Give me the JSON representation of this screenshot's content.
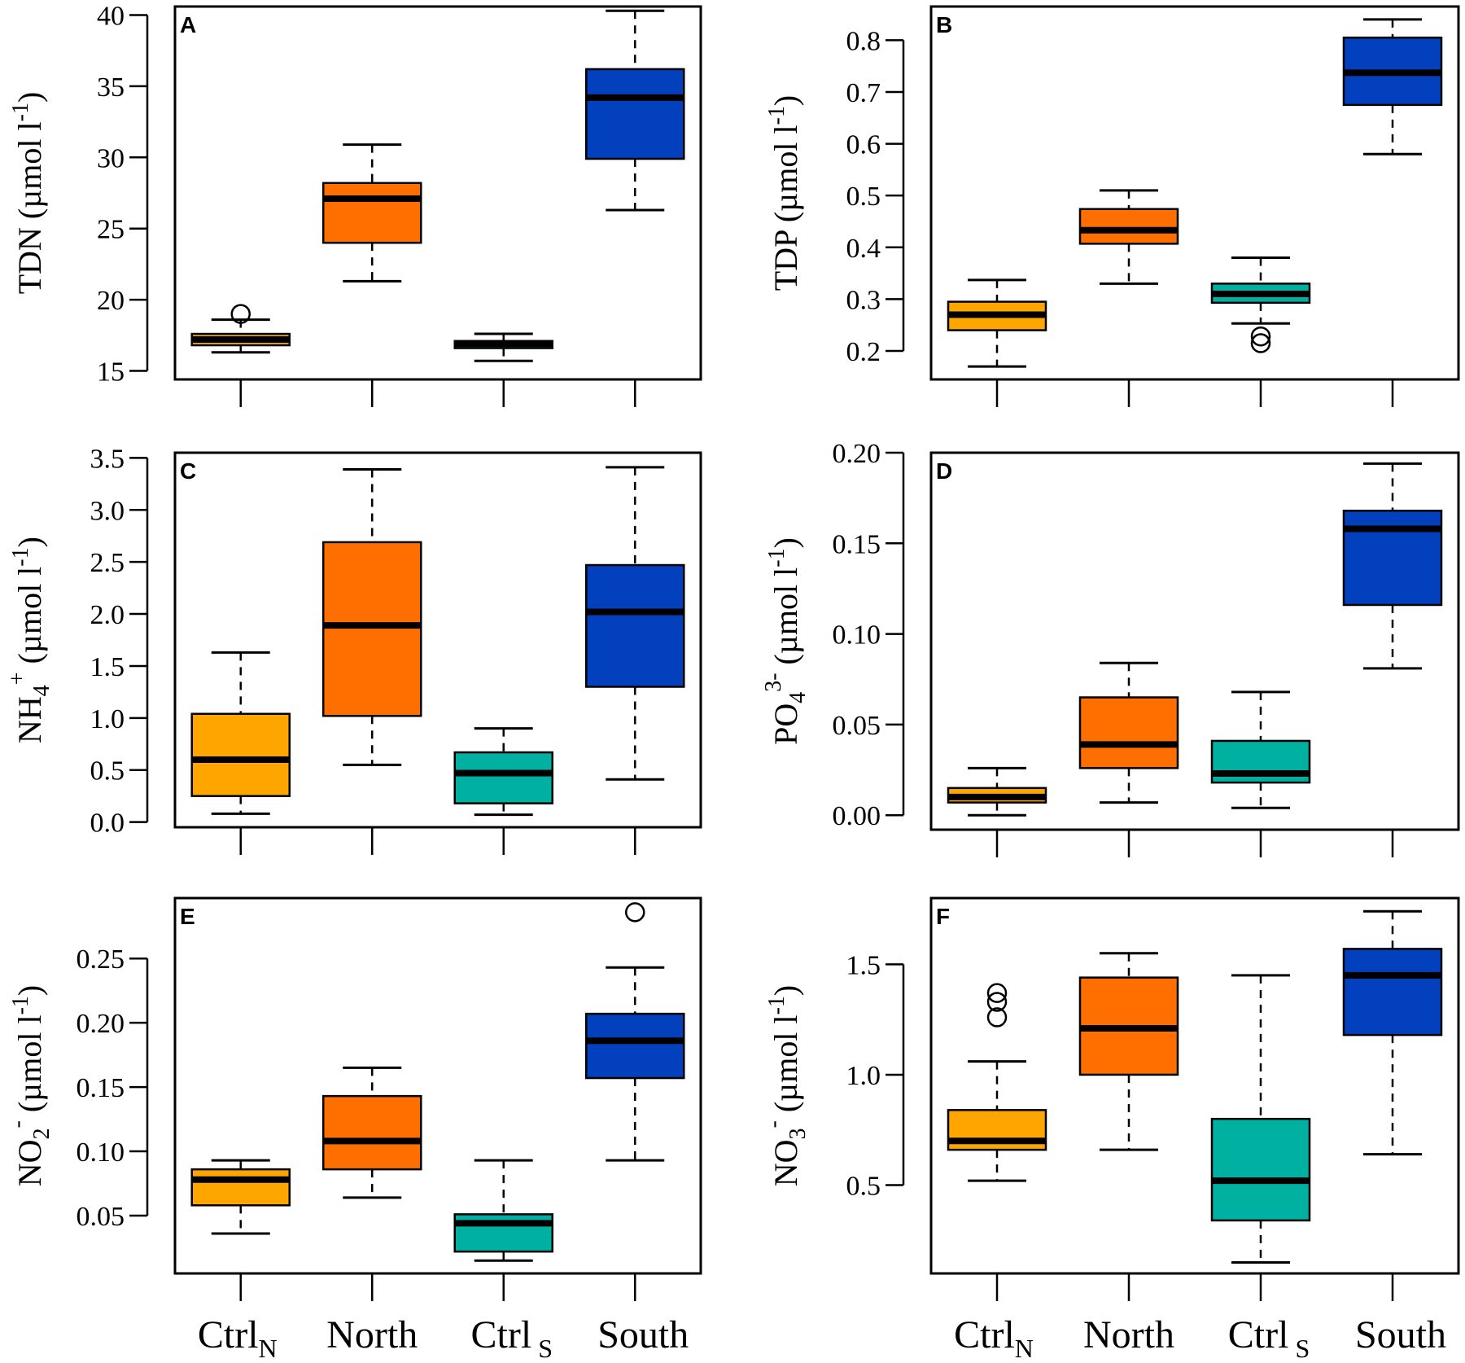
{
  "figure": {
    "categories": [
      "Ctrl_N",
      "North",
      "Ctrl_S",
      "South"
    ]
  },
  "chart_data": [
    {
      "type": "box",
      "panel": "A",
      "ylabel_main": "TDN (µmol l",
      "ylabel_sup": "-1",
      "ylabel_end": ")",
      "ylim": [
        14.4,
        40.6
      ],
      "yticks": [
        15,
        20,
        25,
        30,
        35,
        40
      ],
      "ytick_labels": [
        "15",
        "20",
        "25",
        "30",
        "35",
        "40"
      ],
      "categories": [
        "Ctrl_N",
        "North",
        "Ctrl_S",
        "South"
      ],
      "colors": [
        "#ffa500",
        "#ff6f00",
        "#00b0a0",
        "#0340bd"
      ],
      "boxes": [
        {
          "low": 16.3,
          "q1": 16.8,
          "median": 17.2,
          "q3": 17.6,
          "high": 18.6,
          "outliers": [
            19.0
          ]
        },
        {
          "low": 21.3,
          "q1": 24.0,
          "median": 27.1,
          "q3": 28.2,
          "high": 30.9,
          "outliers": []
        },
        {
          "low": 15.7,
          "q1": 16.6,
          "median": 16.9,
          "q3": 17.1,
          "high": 17.6,
          "outliers": []
        },
        {
          "low": 26.3,
          "q1": 29.9,
          "median": 34.2,
          "q3": 36.2,
          "high": 40.3,
          "outliers": []
        }
      ]
    },
    {
      "type": "box",
      "panel": "B",
      "ylabel_main": "TDP (µmol l",
      "ylabel_sup": "-1",
      "ylabel_end": ")",
      "ylim": [
        0.145,
        0.865
      ],
      "yticks": [
        0.2,
        0.3,
        0.4,
        0.5,
        0.6,
        0.7,
        0.8
      ],
      "ytick_labels": [
        "0.2",
        "0.3",
        "0.4",
        "0.5",
        "0.6",
        "0.7",
        "0.8"
      ],
      "categories": [
        "Ctrl_N",
        "North",
        "Ctrl_S",
        "South"
      ],
      "colors": [
        "#ffa500",
        "#ff6f00",
        "#00b0a0",
        "#0340bd"
      ],
      "boxes": [
        {
          "low": 0.17,
          "q1": 0.24,
          "median": 0.27,
          "q3": 0.295,
          "high": 0.337,
          "outliers": []
        },
        {
          "low": 0.33,
          "q1": 0.407,
          "median": 0.433,
          "q3": 0.474,
          "high": 0.51,
          "outliers": []
        },
        {
          "low": 0.253,
          "q1": 0.293,
          "median": 0.31,
          "q3": 0.33,
          "high": 0.38,
          "outliers": [
            0.215,
            0.228
          ]
        },
        {
          "low": 0.58,
          "q1": 0.675,
          "median": 0.737,
          "q3": 0.805,
          "high": 0.84,
          "outliers": []
        }
      ]
    },
    {
      "type": "box",
      "panel": "C",
      "ylabel_main": "NH",
      "ylabel_sub": "4",
      "ylabel_sup": "+",
      "ylabel_main2": " (µmol l",
      "ylabel_sup2": "-1",
      "ylabel_end": ")",
      "ylim": [
        -0.05,
        3.55
      ],
      "yticks": [
        0.0,
        0.5,
        1.0,
        1.5,
        2.0,
        2.5,
        3.0,
        3.5
      ],
      "ytick_labels": [
        "0.0",
        "0.5",
        "1.0",
        "1.5",
        "2.0",
        "2.5",
        "3.0",
        "3.5"
      ],
      "categories": [
        "Ctrl_N",
        "North",
        "Ctrl_S",
        "South"
      ],
      "colors": [
        "#ffa500",
        "#ff6f00",
        "#00b0a0",
        "#0340bd"
      ],
      "boxes": [
        {
          "low": 0.08,
          "q1": 0.25,
          "median": 0.6,
          "q3": 1.04,
          "high": 1.63,
          "outliers": []
        },
        {
          "low": 0.55,
          "q1": 1.02,
          "median": 1.89,
          "q3": 2.69,
          "high": 3.39,
          "outliers": []
        },
        {
          "low": 0.07,
          "q1": 0.18,
          "median": 0.47,
          "q3": 0.67,
          "high": 0.9,
          "outliers": []
        },
        {
          "low": 0.41,
          "q1": 1.3,
          "median": 2.02,
          "q3": 2.47,
          "high": 3.41,
          "outliers": []
        }
      ]
    },
    {
      "type": "box",
      "panel": "D",
      "ylabel_main": "PO",
      "ylabel_sub": "4",
      "ylabel_sup": "3-",
      "ylabel_main2": " (µmol l",
      "ylabel_sup2": "-1",
      "ylabel_end": ")",
      "ylim": [
        -0.008,
        0.2
      ],
      "yticks": [
        0.0,
        0.05,
        0.1,
        0.15,
        0.2
      ],
      "ytick_labels": [
        "0.00",
        "0.05",
        "0.10",
        "0.15",
        "0.20"
      ],
      "categories": [
        "Ctrl_N",
        "North",
        "Ctrl_S",
        "South"
      ],
      "colors": [
        "#ffa500",
        "#ff6f00",
        "#00b0a0",
        "#0340bd"
      ],
      "boxes": [
        {
          "low": 0.0,
          "q1": 0.007,
          "median": 0.01,
          "q3": 0.015,
          "high": 0.026,
          "outliers": []
        },
        {
          "low": 0.007,
          "q1": 0.026,
          "median": 0.039,
          "q3": 0.065,
          "high": 0.084,
          "outliers": []
        },
        {
          "low": 0.004,
          "q1": 0.018,
          "median": 0.023,
          "q3": 0.041,
          "high": 0.068,
          "outliers": []
        },
        {
          "low": 0.081,
          "q1": 0.116,
          "median": 0.158,
          "q3": 0.168,
          "high": 0.194,
          "outliers": []
        }
      ]
    },
    {
      "type": "box",
      "panel": "E",
      "ylabel_main": "NO",
      "ylabel_sub": "2",
      "ylabel_sup": "-",
      "ylabel_main2": " (µmol l",
      "ylabel_sup2": "-1",
      "ylabel_end": ")",
      "ylim": [
        0.005,
        0.297
      ],
      "yticks": [
        0.05,
        0.1,
        0.15,
        0.2,
        0.25
      ],
      "ytick_labels": [
        "0.05",
        "0.10",
        "0.15",
        "0.20",
        "0.25"
      ],
      "categories": [
        "Ctrl_N",
        "North",
        "Ctrl_S",
        "South"
      ],
      "colors": [
        "#ffa500",
        "#ff6f00",
        "#00b0a0",
        "#0340bd"
      ],
      "boxes": [
        {
          "low": 0.036,
          "q1": 0.058,
          "median": 0.078,
          "q3": 0.086,
          "high": 0.093,
          "outliers": []
        },
        {
          "low": 0.064,
          "q1": 0.086,
          "median": 0.108,
          "q3": 0.143,
          "high": 0.165,
          "outliers": []
        },
        {
          "low": 0.015,
          "q1": 0.022,
          "median": 0.044,
          "q3": 0.051,
          "high": 0.093,
          "outliers": []
        },
        {
          "low": 0.093,
          "q1": 0.157,
          "median": 0.186,
          "q3": 0.207,
          "high": 0.243,
          "outliers": [
            0.286
          ]
        }
      ]
    },
    {
      "type": "box",
      "panel": "F",
      "ylabel_main": "NO",
      "ylabel_sub": "3",
      "ylabel_sup": "-",
      "ylabel_main2": " (µmol l",
      "ylabel_sup2": "-1",
      "ylabel_end": ")",
      "ylim": [
        0.1,
        1.8
      ],
      "yticks": [
        0.5,
        1.0,
        1.5
      ],
      "ytick_labels": [
        "0.5",
        "1.0",
        "1.5"
      ],
      "categories": [
        "Ctrl_N",
        "North",
        "Ctrl_S",
        "South"
      ],
      "colors": [
        "#ffa500",
        "#ff6f00",
        "#00b0a0",
        "#0340bd"
      ],
      "boxes": [
        {
          "low": 0.52,
          "q1": 0.66,
          "median": 0.7,
          "q3": 0.84,
          "high": 1.06,
          "outliers": [
            1.26,
            1.33,
            1.37
          ]
        },
        {
          "low": 0.66,
          "q1": 1.0,
          "median": 1.21,
          "q3": 1.44,
          "high": 1.55,
          "outliers": []
        },
        {
          "low": 0.15,
          "q1": 0.34,
          "median": 0.52,
          "q3": 0.8,
          "high": 1.45,
          "outliers": []
        },
        {
          "low": 0.64,
          "q1": 1.18,
          "median": 1.45,
          "q3": 1.57,
          "high": 1.74,
          "outliers": []
        }
      ]
    }
  ],
  "xlabels": {
    "ctrl": "Ctrl",
    "n_sub": "N",
    "s_sub": "S",
    "north": "North",
    "south": "South"
  }
}
